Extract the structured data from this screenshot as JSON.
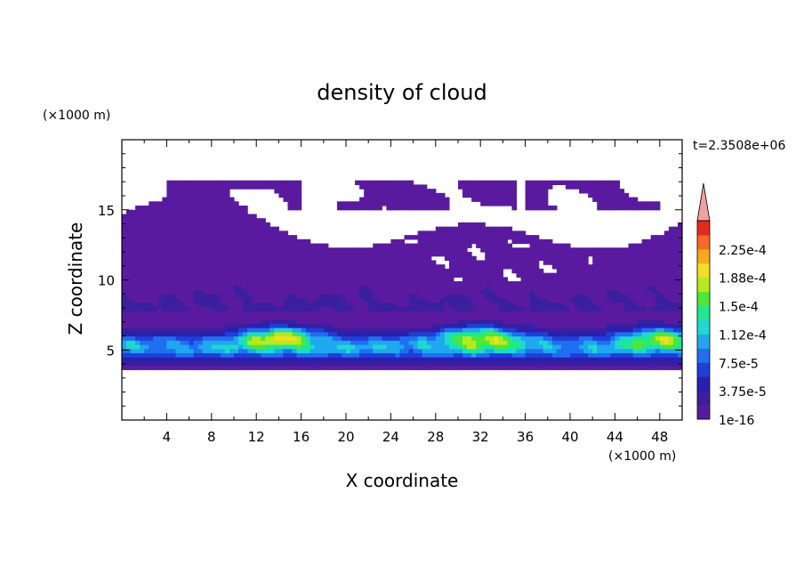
{
  "chart_data": {
    "type": "heatmap",
    "title": "density of cloud",
    "xlabel": "X coordinate",
    "ylabel": "Z coordinate",
    "x_unit": "(×1000 m)",
    "y_unit": "(×1000 m)",
    "time_label": "t=2.3508e+06",
    "xlim": [
      0,
      50
    ],
    "ylim": [
      0,
      20
    ],
    "x_ticks": [
      4,
      8,
      12,
      16,
      20,
      24,
      28,
      32,
      36,
      40,
      44,
      48
    ],
    "y_ticks": [
      5,
      10,
      15
    ],
    "colorbar": {
      "labels": [
        "1e-16",
        "3.75e-5",
        "7.5e-5",
        "1.12e-4",
        "1.5e-4",
        "1.88e-4",
        "2.25e-4"
      ],
      "bins": [
        {
          "value": 1e-16,
          "color": "#5a1aa0"
        },
        {
          "value": 1.875e-05,
          "color": "#3a1f9e"
        },
        {
          "value": 3.75e-05,
          "color": "#2a1fb0"
        },
        {
          "value": 5.625e-05,
          "color": "#1f3fd8"
        },
        {
          "value": 7.5e-05,
          "color": "#1f6ff0"
        },
        {
          "value": 9.375e-05,
          "color": "#1fa8f0"
        },
        {
          "value": 0.000112,
          "color": "#1fd8d0"
        },
        {
          "value": 0.000131,
          "color": "#1fe890"
        },
        {
          "value": 0.00015,
          "color": "#50e830"
        },
        {
          "value": 0.000169,
          "color": "#b8e81f"
        },
        {
          "value": 0.000188,
          "color": "#f0e01f"
        },
        {
          "value": 0.000206,
          "color": "#f8a81f"
        },
        {
          "value": 0.000225,
          "color": "#f86a1f"
        },
        {
          "value": 0.000244,
          "color": "#e8281f"
        }
      ],
      "over_color": "#f5a0a0"
    },
    "cloud_base_km": 3.5,
    "cloud_top_km_range": [
      12,
      17
    ],
    "core_layer_km": [
      4.5,
      7
    ],
    "peak_cores": [
      {
        "x_km": 14,
        "z_km": 6,
        "value": 0.000188
      },
      {
        "x_km": 32,
        "z_km": 6,
        "value": 0.000188
      },
      {
        "x_km": 48,
        "z_km": 6,
        "value": 0.00015
      }
    ]
  }
}
